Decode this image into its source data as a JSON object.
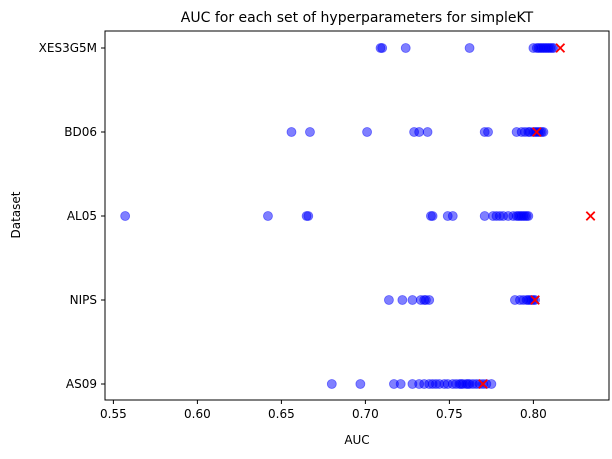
{
  "chart_data": {
    "type": "scatter",
    "title": "AUC for each set of hyperparameters for simpleKT",
    "xlabel": "AUC",
    "ylabel": "Dataset",
    "xlim": [
      0.545,
      0.845
    ],
    "xticks": [
      0.55,
      0.6,
      0.65,
      0.7,
      0.75,
      0.8
    ],
    "xtick_labels": [
      "0.55",
      "0.60",
      "0.65",
      "0.70",
      "0.75",
      "0.80"
    ],
    "categories": [
      "XES3G5M",
      "BD06",
      "AL05",
      "NIPS",
      "AS09"
    ],
    "grid": false,
    "series": [
      {
        "marker": "circle",
        "color": "#0000ff",
        "opacity": 0.5,
        "points": [
          {
            "category": "XES3G5M",
            "values": [
              0.709,
              0.71,
              0.724,
              0.762,
              0.8,
              0.802,
              0.803,
              0.804,
              0.805,
              0.806,
              0.807,
              0.808,
              0.809,
              0.81,
              0.811,
              0.812
            ]
          },
          {
            "category": "BD06",
            "values": [
              0.656,
              0.667,
              0.701,
              0.729,
              0.732,
              0.737,
              0.771,
              0.773,
              0.79,
              0.793,
              0.795,
              0.797,
              0.798,
              0.8,
              0.801,
              0.802,
              0.803,
              0.804,
              0.805,
              0.806
            ]
          },
          {
            "category": "AL05",
            "values": [
              0.557,
              0.642,
              0.665,
              0.666,
              0.739,
              0.74,
              0.749,
              0.752,
              0.771,
              0.776,
              0.778,
              0.78,
              0.782,
              0.785,
              0.788,
              0.79,
              0.791,
              0.792,
              0.793,
              0.794,
              0.795,
              0.796,
              0.797
            ]
          },
          {
            "category": "NIPS",
            "values": [
              0.714,
              0.722,
              0.728,
              0.733,
              0.735,
              0.736,
              0.738,
              0.789,
              0.792,
              0.794,
              0.796,
              0.797,
              0.798,
              0.799,
              0.8,
              0.801
            ]
          },
          {
            "category": "AS09",
            "values": [
              0.68,
              0.697,
              0.717,
              0.721,
              0.728,
              0.732,
              0.735,
              0.738,
              0.74,
              0.742,
              0.744,
              0.747,
              0.749,
              0.752,
              0.754,
              0.756,
              0.757,
              0.758,
              0.76,
              0.761,
              0.762,
              0.764,
              0.766,
              0.768,
              0.77,
              0.772,
              0.775
            ]
          }
        ]
      },
      {
        "marker": "x",
        "color": "#ff0000",
        "opacity": 1,
        "points": [
          {
            "category": "XES3G5M",
            "values": [
              0.816
            ]
          },
          {
            "category": "BD06",
            "values": [
              0.802
            ]
          },
          {
            "category": "AL05",
            "values": [
              0.834
            ]
          },
          {
            "category": "NIPS",
            "values": [
              0.801
            ]
          },
          {
            "category": "AS09",
            "values": [
              0.77
            ]
          }
        ]
      }
    ]
  }
}
